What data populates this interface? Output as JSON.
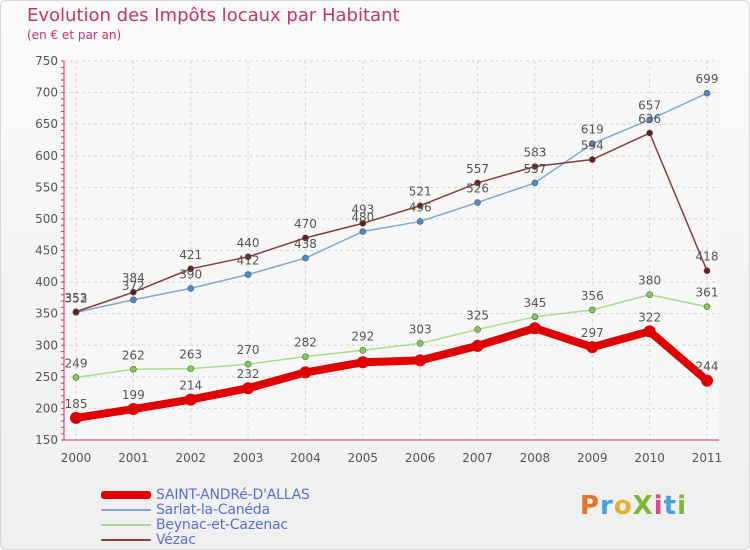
{
  "page": {
    "title": "Evolution des Impôts locaux par Habitant",
    "subtitle": "(en € et par an)",
    "logo_text": "ProXiti",
    "logo_colors": [
      "#e8732a",
      "#4aa0d8",
      "#e8b02a",
      "#7ab830",
      "#d94a8a",
      "#4aa0d8",
      "#7ab830"
    ]
  },
  "chart_data": {
    "type": "line",
    "title": "Evolution des Impôts locaux par Habitant",
    "subtitle": "(en € et par an)",
    "xlabel": "",
    "ylabel": "",
    "x": [
      "2000",
      "2001",
      "2002",
      "2003",
      "2004",
      "2005",
      "2006",
      "2007",
      "2008",
      "2009",
      "2010",
      "2011"
    ],
    "ylim": [
      150,
      750
    ],
    "yticks": [
      150,
      200,
      250,
      300,
      350,
      400,
      450,
      500,
      550,
      600,
      650,
      700,
      750
    ],
    "grid": true,
    "legend_position": "bottom-left",
    "series": [
      {
        "name": "SAINT-ANDRé-D'ALLAS",
        "color": "#e00000",
        "marker": "#e00000",
        "values": [
          185,
          199,
          214,
          232,
          257,
          273,
          276,
          299,
          327,
          297,
          322,
          244
        ],
        "labels": [
          185,
          199,
          214,
          232,
          null,
          null,
          null,
          null,
          null,
          297,
          322,
          244
        ]
      },
      {
        "name": "Sarlat-la-Canéda",
        "color": "#7ea9d6",
        "marker": "#4d8ccc",
        "values": [
          352,
          372,
          390,
          412,
          438,
          480,
          496,
          526,
          557,
          619,
          657,
          699
        ],
        "labels": [
          352,
          372,
          390,
          412,
          438,
          480,
          496,
          526,
          557,
          619,
          657,
          699
        ]
      },
      {
        "name": "Beynac-et-Cazenac",
        "color": "#a8dc8a",
        "marker": "#7ed04a",
        "values": [
          249,
          262,
          263,
          270,
          282,
          292,
          303,
          325,
          345,
          356,
          380,
          361
        ],
        "labels": [
          249,
          262,
          263,
          270,
          282,
          292,
          303,
          325,
          345,
          356,
          380,
          361
        ]
      },
      {
        "name": "Vézac",
        "color": "#8a3a3a",
        "marker": "#6a1a1a",
        "values": [
          353,
          384,
          421,
          440,
          470,
          493,
          521,
          557,
          583,
          594,
          636,
          418
        ],
        "labels": [
          353,
          384,
          421,
          440,
          470,
          493,
          521,
          557,
          583,
          594,
          636,
          418
        ]
      }
    ]
  }
}
